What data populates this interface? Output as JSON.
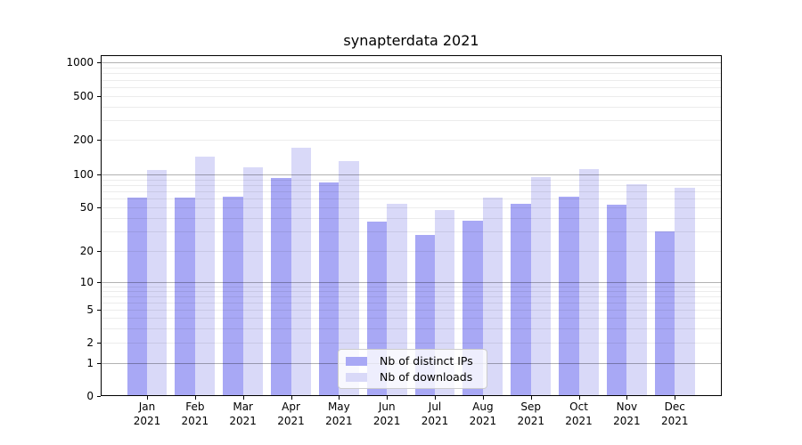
{
  "chart_data": {
    "type": "bar",
    "title": "synapterdata 2021",
    "categories": [
      "Jan",
      "Feb",
      "Mar",
      "Apr",
      "May",
      "Jun",
      "Jul",
      "Aug",
      "Sep",
      "Oct",
      "Nov",
      "Dec"
    ],
    "x_tick_second_line": "2021",
    "series": [
      {
        "name": "Nb of distinct IPs",
        "color": "#a8a8f5",
        "values": [
          62,
          62,
          63,
          93,
          84,
          37,
          28,
          38,
          54,
          63,
          53,
          30
        ]
      },
      {
        "name": "Nb of downloads",
        "color": "#d9d9f8",
        "values": [
          110,
          142,
          115,
          170,
          130,
          54,
          47,
          61,
          95,
          112,
          81,
          76
        ]
      }
    ],
    "y_ticks": [
      0,
      1,
      2,
      5,
      10,
      20,
      50,
      100,
      200,
      500,
      1000
    ],
    "y_scale": "symlog",
    "ylim": [
      0,
      1200
    ],
    "xlabel": "",
    "ylabel": "",
    "grid": true,
    "legend_position": "inside-bottom-center"
  }
}
